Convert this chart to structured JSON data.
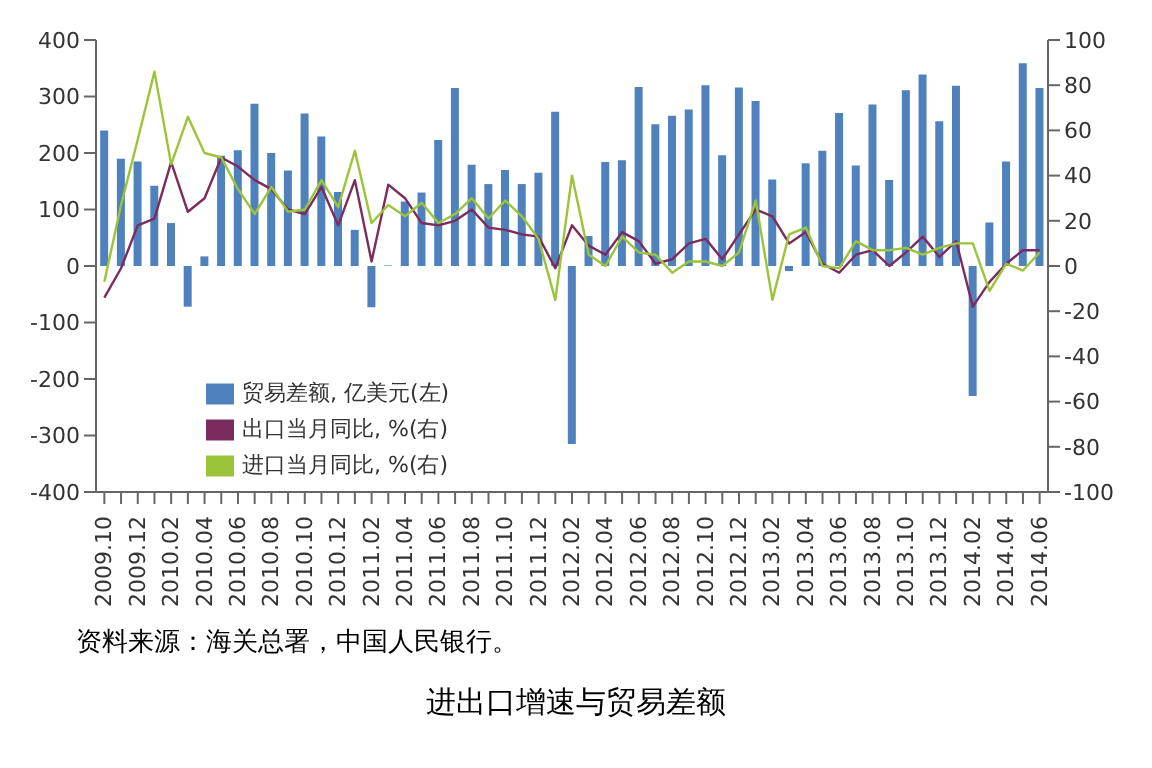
{
  "chart_data": {
    "type": "bar",
    "title": "进出口增速与贸易差额",
    "annotations": [
      "资料来源：海关总署，中国人民银行。"
    ],
    "categories": [
      "2009.10",
      null,
      "2009.12",
      null,
      "2010.02",
      null,
      "2010.04",
      null,
      "2010.06",
      null,
      "2010.08",
      null,
      "2010.10",
      null,
      "2010.12",
      null,
      "2011.02",
      null,
      "2011.04",
      null,
      "2011.06",
      null,
      "2011.08",
      null,
      "2011.10",
      null,
      "2011.12",
      null,
      "2012.02",
      null,
      "2012.04",
      null,
      "2012.06",
      null,
      "2012.08",
      null,
      "2012.10",
      null,
      "2012.12",
      null,
      "2013.02",
      null,
      "2013.04",
      null,
      "2013.06",
      null,
      "2013.08",
      null,
      "2013.10",
      null,
      "2013.12",
      null,
      "2014.02",
      null,
      "2014.04",
      null,
      "2014.06"
    ],
    "series": [
      {
        "name": "贸易差额, 亿美元(左)",
        "color": "#4f81bd",
        "values": [
          240,
          190,
          185,
          142,
          76,
          -72,
          17,
          195,
          205,
          287,
          200,
          169,
          270,
          229,
          131,
          64,
          -73,
          1,
          114,
          130,
          223,
          315,
          179,
          145,
          170,
          145,
          165,
          273,
          -315,
          53,
          184,
          187,
          317,
          251,
          266,
          277,
          320,
          196,
          316,
          292,
          153,
          -9,
          182,
          204,
          271,
          178,
          286,
          152,
          311,
          339,
          256,
          319,
          -230,
          77,
          185,
          359,
          315
        ]
      },
      {
        "name": "出口当月同比, %(右)",
        "type": "line",
        "axis": "y2",
        "color": "#7b2c5f",
        "values": [
          -14,
          -1,
          18,
          21,
          46,
          24,
          30,
          48,
          44,
          38,
          34,
          25,
          23,
          35,
          18,
          38,
          2,
          36,
          30,
          19,
          18,
          20,
          25,
          17,
          16,
          14,
          13,
          -1,
          18,
          9,
          5,
          15,
          11,
          1,
          3,
          10,
          12,
          3,
          14,
          25,
          22,
          10,
          15,
          1,
          -3,
          5,
          7,
          0,
          6,
          13,
          4,
          11,
          -18,
          -7,
          1,
          7,
          7
        ]
      },
      {
        "name": "进口当月同比, %(右)",
        "type": "line",
        "axis": "y2",
        "color": "#9bc43a",
        "values": [
          -7,
          27,
          56,
          86,
          45,
          66,
          50,
          48,
          34,
          23,
          35,
          24,
          25,
          38,
          26,
          51,
          19,
          27,
          22,
          28,
          19,
          23,
          30,
          21,
          29,
          22,
          12,
          -15,
          40,
          5,
          0,
          13,
          6,
          5,
          -3,
          2,
          2,
          0,
          6,
          29,
          -15,
          14,
          17,
          0,
          -1,
          11,
          7,
          7,
          8,
          5,
          8,
          10,
          10,
          -11,
          1,
          -2,
          6
        ]
      }
    ],
    "ylim": [
      -400,
      400
    ],
    "yticks": [
      -400,
      -300,
      -200,
      -100,
      0,
      100,
      200,
      300,
      400
    ],
    "y2lim": [
      -100,
      100
    ],
    "y2ticks": [
      -100,
      -80,
      -60,
      -40,
      -20,
      0,
      20,
      40,
      60,
      80,
      100
    ],
    "grid": false,
    "legend": "bottom left",
    "marker": "none",
    "line_style": "solid"
  }
}
